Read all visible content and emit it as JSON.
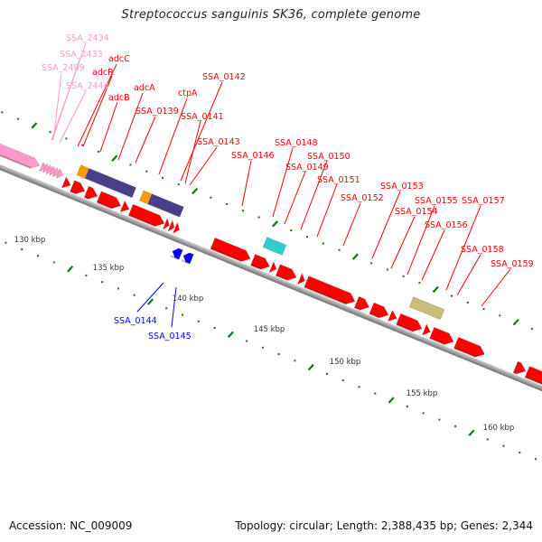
{
  "title": "Streptococcus sanguinis SK36, complete genome",
  "footer": {
    "accession_label": "Accession: NC_009009",
    "summary": "Topology: circular; Length: 2,388,435 bp; Genes: 2,344"
  },
  "colors": {
    "forward_gene": "#ff0000",
    "reverse_gene": "#0000ff",
    "pink_gene": "#ff99cc",
    "purple_block": "#4b3f8c",
    "orange_block": "#ff9900",
    "cyan_block": "#33cccc",
    "khaki_block": "#c8bd7a",
    "backbone": "#999999",
    "tick": "#117711"
  },
  "kbp_ticks": [
    "130 kbp",
    "135 kbp",
    "140 kbp",
    "145 kbp",
    "150 kbp",
    "155 kbp",
    "160 kbp"
  ],
  "labels_top": [
    {
      "name": "SSA_2434",
      "color": "pink"
    },
    {
      "name": "SSA_2433",
      "color": "pink"
    },
    {
      "name": "SSA_2409",
      "color": "pink"
    },
    {
      "name": "SSA_2444",
      "color": "pink"
    },
    {
      "name": "adcC",
      "color": "red"
    },
    {
      "name": "adcR",
      "color": "red"
    },
    {
      "name": "adcB",
      "color": "red"
    },
    {
      "name": "adcA",
      "color": "red"
    },
    {
      "name": "SSA_0139",
      "color": "red"
    },
    {
      "name": "ctpA",
      "color": "red"
    },
    {
      "name": "SSA_0142",
      "color": "red"
    },
    {
      "name": "SSA_0141",
      "color": "red"
    },
    {
      "name": "SSA_0143",
      "color": "red"
    },
    {
      "name": "SSA_0146",
      "color": "red"
    },
    {
      "name": "SSA_0148",
      "color": "red"
    },
    {
      "name": "SSA_0149",
      "color": "red"
    },
    {
      "name": "SSA_0150",
      "color": "red"
    },
    {
      "name": "SSA_0151",
      "color": "red"
    },
    {
      "name": "SSA_0152",
      "color": "red"
    },
    {
      "name": "SSA_0153",
      "color": "red"
    },
    {
      "name": "SSA_0154",
      "color": "red"
    },
    {
      "name": "SSA_0155",
      "color": "red"
    },
    {
      "name": "SSA_0156",
      "color": "red"
    },
    {
      "name": "SSA_0157",
      "color": "red"
    },
    {
      "name": "SSA_0158",
      "color": "red"
    },
    {
      "name": "SSA_0159",
      "color": "red"
    }
  ],
  "labels_bottom": [
    {
      "name": "SSA_0144",
      "color": "blue"
    },
    {
      "name": "SSA_0145",
      "color": "blue"
    }
  ]
}
